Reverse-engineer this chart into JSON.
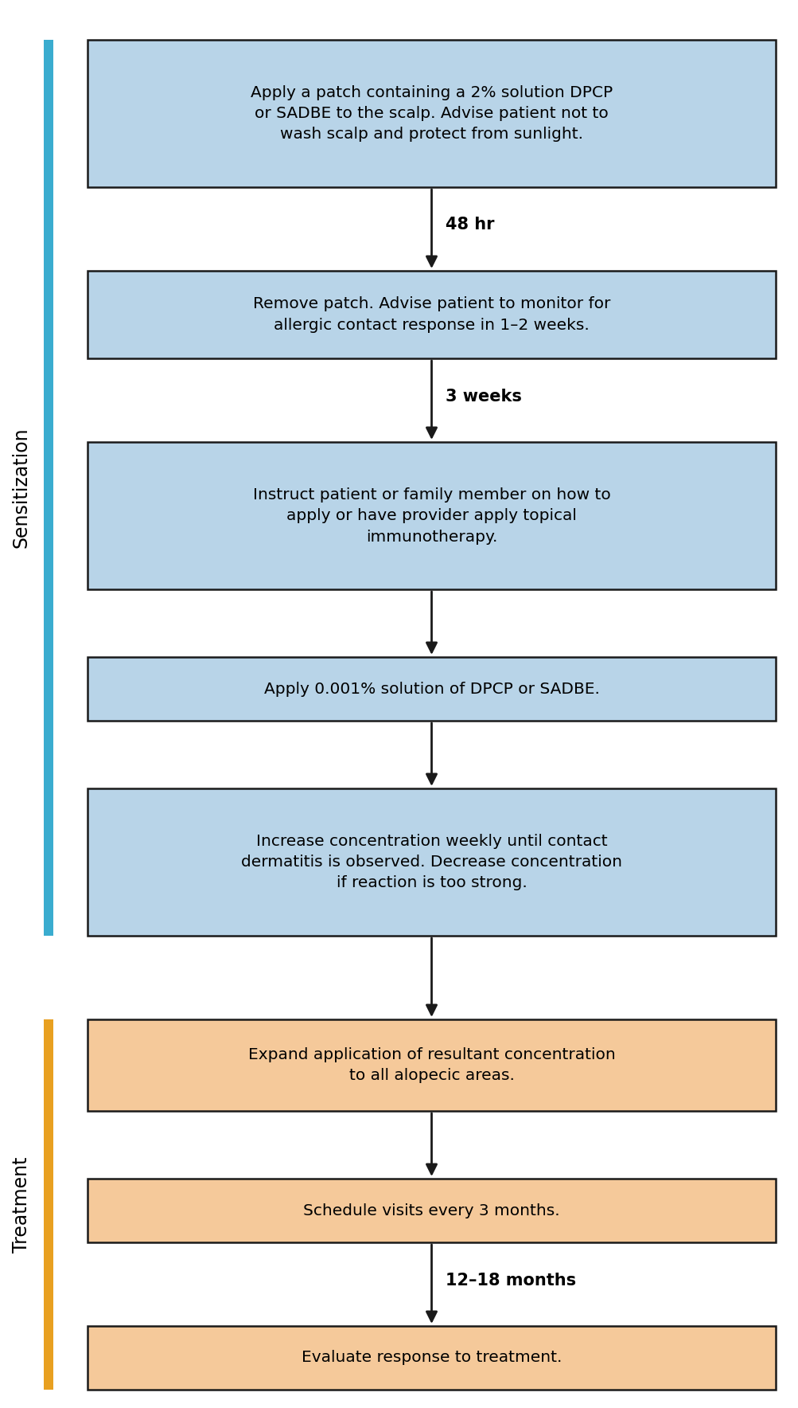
{
  "boxes": [
    {
      "text": "Apply a patch containing a 2% solution DPCP\nor SADBE to the scalp. Advise patient not to\nwash scalp and protect from sunlight.",
      "color": "#b8d4e8",
      "edge_color": "#1a1a1a",
      "section": "sensitization"
    },
    {
      "text": "Remove patch. Advise patient to monitor for\nallergic contact response in 1–2 weeks.",
      "color": "#b8d4e8",
      "edge_color": "#1a1a1a",
      "section": "sensitization"
    },
    {
      "text": "Instruct patient or family member on how to\napply or have provider apply topical\nimmunotherapy.",
      "color": "#b8d4e8",
      "edge_color": "#1a1a1a",
      "section": "sensitization"
    },
    {
      "text": "Apply 0.001% solution of DPCP or SADBE.",
      "color": "#b8d4e8",
      "edge_color": "#1a1a1a",
      "section": "sensitization"
    },
    {
      "text": "Increase concentration weekly until contact\ndermatitis is observed. Decrease concentration\nif reaction is too strong.",
      "color": "#b8d4e8",
      "edge_color": "#1a1a1a",
      "section": "sensitization"
    },
    {
      "text": "Expand application of resultant concentration\nto all alopecic areas.",
      "color": "#f5c99a",
      "edge_color": "#1a1a1a",
      "section": "treatment"
    },
    {
      "text": "Schedule visits every 3 months.",
      "color": "#f5c99a",
      "edge_color": "#1a1a1a",
      "section": "treatment"
    },
    {
      "text": "Evaluate response to treatment.",
      "color": "#f5c99a",
      "edge_color": "#1a1a1a",
      "section": "treatment"
    }
  ],
  "arrows": [
    {
      "label": "48 hr",
      "bold": true
    },
    {
      "label": "3 weeks",
      "bold": true
    },
    {
      "label": "",
      "bold": false
    },
    {
      "label": "",
      "bold": false
    },
    {
      "label": "",
      "bold": false
    },
    {
      "label": "",
      "bold": false
    },
    {
      "label": "12–18 months",
      "bold": true
    }
  ],
  "sensitization_bar_color": "#3aaccf",
  "treatment_bar_color": "#e8a020",
  "sensitization_label": "Sensitization",
  "treatment_label": "Treatment",
  "bg_color": "#ffffff",
  "box_text_color": "#000000",
  "arrow_label_color": "#000000",
  "fig_width": 10.04,
  "fig_height": 17.68,
  "dpi": 100
}
